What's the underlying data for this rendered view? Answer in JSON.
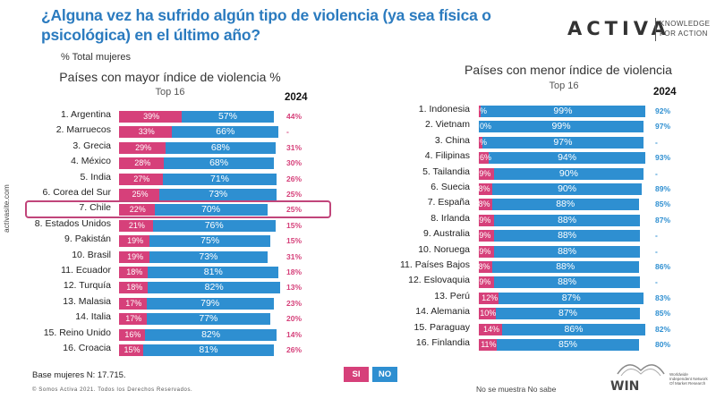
{
  "title": "¿Alguna vez ha sufrido algún tipo de violencia (ya sea física o psicológica) en el último año?",
  "subtitle": "% Total mujeres",
  "brand": {
    "name": "ACTIVA",
    "tagline_1": "KNOWLEDGE",
    "tagline_2": "FOR ACTION"
  },
  "side_url": "activasite.com",
  "base_note": "Base mujeres N: 17.715.",
  "copyright": "© Somos Activa 2021. Todos los Derechos Reservados.",
  "legend": {
    "si": "SI",
    "no": "NO"
  },
  "footer_note": "No se muestra No sabe",
  "win_logo": {
    "name": "WIN",
    "line1": "Worldwide",
    "line2": "Independent Network",
    "line3": "Of Market Research"
  },
  "colors": {
    "si": "#d6407a",
    "no": "#2e8fd1",
    "title": "#2b7bbf",
    "val24_left": "#d6407a",
    "val24_right": "#2e8fd1",
    "highlight": "#c1457a"
  },
  "chart_data": [
    {
      "type": "bar",
      "stacked": true,
      "orientation": "horizontal",
      "title": "Países con mayor índice de violencia %",
      "subtitle": "Top 16",
      "year_label": "2024",
      "highlighted_row": 6,
      "categories": [
        "1. Argentina",
        "2. Marruecos",
        "3. Grecia",
        "4. México",
        "5. India",
        "6. Corea del Sur",
        "7. Chile",
        "8. Estados Unidos",
        "9. Pakistán",
        "10. Brasil",
        "11. Ecuador",
        "12. Turquía",
        "13. Malasia",
        "14. Italia",
        "15. Reino Unido",
        "16. Croacia"
      ],
      "series": [
        {
          "name": "SI",
          "values": [
            39,
            33,
            29,
            28,
            27,
            25,
            22,
            21,
            19,
            19,
            18,
            18,
            17,
            17,
            16,
            15
          ],
          "labels": [
            "39%",
            "33%",
            "29%",
            "28%",
            "27%",
            "25%",
            "22%",
            "21%",
            "19%",
            "19%",
            "18%",
            "18%",
            "17%",
            "17%",
            "16%",
            "15%"
          ]
        },
        {
          "name": "NO",
          "values": [
            57,
            66,
            68,
            68,
            71,
            73,
            70,
            76,
            75,
            73,
            81,
            82,
            79,
            77,
            82,
            81
          ],
          "labels": [
            "57%",
            "66%",
            "68%",
            "68%",
            "71%",
            "73%",
            "70%",
            "76%",
            "75%",
            "73%",
            "81%",
            "82%",
            "79%",
            "77%",
            "82%",
            "81%"
          ]
        }
      ],
      "values_2024": [
        "44%",
        "-",
        "31%",
        "30%",
        "26%",
        "25%",
        "25%",
        "15%",
        "15%",
        "31%",
        "18%",
        "13%",
        "23%",
        "20%",
        "14%",
        "26%"
      ]
    },
    {
      "type": "bar",
      "stacked": true,
      "orientation": "horizontal",
      "title": "Países con menor índice de violencia",
      "subtitle": "Top 16",
      "year_label": "2024",
      "categories": [
        "1. Indonesia",
        "2. Vietnam",
        "3. China",
        "4. Filipinas",
        "5. Tailandia",
        "6. Suecia",
        "7. España",
        "8. Irlanda",
        "9. Australia",
        "10. Noruega",
        "11. Países Bajos",
        "12. Eslovaquia",
        "13. Perú",
        "14. Alemania",
        "15. Paraguay",
        "16. Finlandia"
      ],
      "series": [
        {
          "name": "SI",
          "values": [
            1,
            0,
            2,
            6,
            9,
            8,
            8,
            9,
            9,
            9,
            8,
            9,
            12,
            10,
            14,
            11
          ],
          "labels": [
            "%",
            "0%",
            "%",
            "6%",
            "9%",
            "8%",
            "8%",
            "9%",
            "9%",
            "9%",
            "8%",
            "9%",
            "12%",
            "10%",
            "14%",
            "11%"
          ]
        },
        {
          "name": "NO",
          "values": [
            99,
            99,
            97,
            94,
            90,
            90,
            88,
            88,
            88,
            88,
            88,
            88,
            87,
            87,
            86,
            85
          ],
          "labels": [
            "99%",
            "99%",
            "97%",
            "94%",
            "90%",
            "90%",
            "88%",
            "88%",
            "88%",
            "88%",
            "88%",
            "88%",
            "87%",
            "87%",
            "86%",
            "85%"
          ]
        }
      ],
      "values_2024": [
        "92%",
        "97%",
        "-",
        "93%",
        "-",
        "89%",
        "85%",
        "87%",
        "-",
        "-",
        "86%",
        "-",
        "83%",
        "85%",
        "82%",
        "80%"
      ]
    }
  ]
}
